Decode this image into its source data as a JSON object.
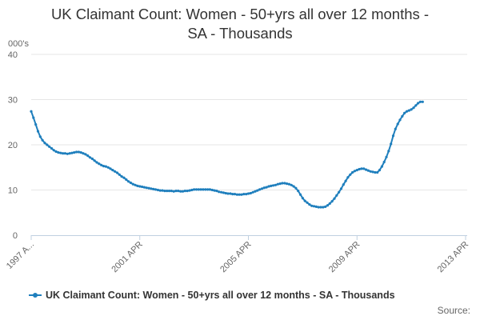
{
  "title_lines": [
    "UK Claimant Count: Women - 50+yrs all over 12 months -",
    "SA - Thousands"
  ],
  "source_label": "Source:",
  "colors": {
    "series": "#1f7fbd",
    "grid": "#e6e6e6",
    "axis": "#c0d0e0",
    "text": "#666666"
  },
  "chart_data": {
    "type": "line",
    "title": "UK Claimant Count: Women - 50+yrs all over 12 months - SA - Thousands",
    "ylabel": "000's",
    "ylim": [
      0,
      40
    ],
    "yticks": [
      0,
      10,
      20,
      30,
      40
    ],
    "grid": true,
    "legend_position": "bottom",
    "x_start": "1997 APR",
    "x_end": "2013 APR",
    "xtick_labels": [
      "1997 A...",
      "2001 APR",
      "2005 APR",
      "2009 APR",
      "2013 APR"
    ],
    "series": [
      {
        "name": "UK Claimant Count: Women - 50+yrs all over 12 months - SA - Thousands",
        "points": [
          [
            "1997 APR",
            27.4
          ],
          [
            "1997 MAY",
            26.0
          ],
          [
            "1997 JUN",
            24.5
          ],
          [
            "1997 JUL",
            23.0
          ],
          [
            "1997 AUG",
            21.8
          ],
          [
            "1997 SEP",
            21.0
          ],
          [
            "1997 OCT",
            20.4
          ],
          [
            "1997 NOV",
            20.0
          ],
          [
            "1997 DEC",
            19.6
          ],
          [
            "1998 JAN",
            19.2
          ],
          [
            "1998 FEB",
            18.8
          ],
          [
            "1998 MAR",
            18.5
          ],
          [
            "1998 APR",
            18.3
          ],
          [
            "1998 MAY",
            18.2
          ],
          [
            "1998 JUN",
            18.1
          ],
          [
            "1998 JUL",
            18.1
          ],
          [
            "1998 AUG",
            18.0
          ],
          [
            "1998 SEP",
            18.1
          ],
          [
            "1998 OCT",
            18.2
          ],
          [
            "1998 NOV",
            18.3
          ],
          [
            "1998 DEC",
            18.4
          ],
          [
            "1999 JAN",
            18.4
          ],
          [
            "1999 FEB",
            18.3
          ],
          [
            "1999 MAR",
            18.1
          ],
          [
            "1999 APR",
            17.9
          ],
          [
            "1999 MAY",
            17.6
          ],
          [
            "1999 JUN",
            17.2
          ],
          [
            "1999 JUL",
            16.9
          ],
          [
            "1999 AUG",
            16.5
          ],
          [
            "1999 SEP",
            16.1
          ],
          [
            "1999 OCT",
            15.8
          ],
          [
            "1999 NOV",
            15.5
          ],
          [
            "1999 DEC",
            15.3
          ],
          [
            "2000 JAN",
            15.2
          ],
          [
            "2000 FEB",
            15.0
          ],
          [
            "2000 MAR",
            14.7
          ],
          [
            "2000 APR",
            14.4
          ],
          [
            "2000 MAY",
            14.1
          ],
          [
            "2000 JUN",
            13.8
          ],
          [
            "2000 JUL",
            13.4
          ],
          [
            "2000 AUG",
            13.0
          ],
          [
            "2000 SEP",
            12.7
          ],
          [
            "2000 OCT",
            12.3
          ],
          [
            "2000 NOV",
            11.9
          ],
          [
            "2000 DEC",
            11.6
          ],
          [
            "2001 JAN",
            11.3
          ],
          [
            "2001 FEB",
            11.1
          ],
          [
            "2001 MAR",
            10.9
          ],
          [
            "2001 APR",
            10.8
          ],
          [
            "2001 MAY",
            10.7
          ],
          [
            "2001 JUN",
            10.6
          ],
          [
            "2001 JUL",
            10.5
          ],
          [
            "2001 AUG",
            10.4
          ],
          [
            "2001 SEP",
            10.3
          ],
          [
            "2001 OCT",
            10.2
          ],
          [
            "2001 NOV",
            10.1
          ],
          [
            "2001 DEC",
            10.0
          ],
          [
            "2002 JAN",
            9.9
          ],
          [
            "2002 FEB",
            9.9
          ],
          [
            "2002 MAR",
            9.8
          ],
          [
            "2002 APR",
            9.8
          ],
          [
            "2002 MAY",
            9.8
          ],
          [
            "2002 JUN",
            9.8
          ],
          [
            "2002 JUL",
            9.7
          ],
          [
            "2002 AUG",
            9.8
          ],
          [
            "2002 SEP",
            9.8
          ],
          [
            "2002 OCT",
            9.7
          ],
          [
            "2002 NOV",
            9.7
          ],
          [
            "2002 DEC",
            9.8
          ],
          [
            "2003 JAN",
            9.8
          ],
          [
            "2003 FEB",
            9.9
          ],
          [
            "2003 MAR",
            10.0
          ],
          [
            "2003 APR",
            10.1
          ],
          [
            "2003 MAY",
            10.1
          ],
          [
            "2003 JUN",
            10.1
          ],
          [
            "2003 JUL",
            10.1
          ],
          [
            "2003 AUG",
            10.1
          ],
          [
            "2003 SEP",
            10.1
          ],
          [
            "2003 OCT",
            10.1
          ],
          [
            "2003 NOV",
            10.1
          ],
          [
            "2003 DEC",
            10.0
          ],
          [
            "2004 JAN",
            9.9
          ],
          [
            "2004 FEB",
            9.8
          ],
          [
            "2004 MAR",
            9.6
          ],
          [
            "2004 APR",
            9.5
          ],
          [
            "2004 MAY",
            9.4
          ],
          [
            "2004 JUN",
            9.3
          ],
          [
            "2004 JUL",
            9.2
          ],
          [
            "2004 AUG",
            9.2
          ],
          [
            "2004 SEP",
            9.1
          ],
          [
            "2004 OCT",
            9.1
          ],
          [
            "2004 NOV",
            9.0
          ],
          [
            "2004 DEC",
            9.0
          ],
          [
            "2005 JAN",
            9.0
          ],
          [
            "2005 FEB",
            9.1
          ],
          [
            "2005 MAR",
            9.1
          ],
          [
            "2005 APR",
            9.2
          ],
          [
            "2005 MAY",
            9.3
          ],
          [
            "2005 JUN",
            9.5
          ],
          [
            "2005 JUL",
            9.7
          ],
          [
            "2005 AUG",
            9.9
          ],
          [
            "2005 SEP",
            10.1
          ],
          [
            "2005 OCT",
            10.3
          ],
          [
            "2005 NOV",
            10.5
          ],
          [
            "2005 DEC",
            10.6
          ],
          [
            "2006 JAN",
            10.8
          ],
          [
            "2006 FEB",
            10.9
          ],
          [
            "2006 MAR",
            11.0
          ],
          [
            "2006 APR",
            11.1
          ],
          [
            "2006 MAY",
            11.3
          ],
          [
            "2006 JUN",
            11.4
          ],
          [
            "2006 JUL",
            11.5
          ],
          [
            "2006 AUG",
            11.5
          ],
          [
            "2006 SEP",
            11.4
          ],
          [
            "2006 OCT",
            11.3
          ],
          [
            "2006 NOV",
            11.1
          ],
          [
            "2006 DEC",
            10.8
          ],
          [
            "2007 JAN",
            10.4
          ],
          [
            "2007 FEB",
            9.8
          ],
          [
            "2007 MAR",
            9.0
          ],
          [
            "2007 APR",
            8.2
          ],
          [
            "2007 MAY",
            7.6
          ],
          [
            "2007 JUN",
            7.2
          ],
          [
            "2007 JUL",
            6.8
          ],
          [
            "2007 AUG",
            6.5
          ],
          [
            "2007 SEP",
            6.4
          ],
          [
            "2007 OCT",
            6.3
          ],
          [
            "2007 NOV",
            6.2
          ],
          [
            "2007 DEC",
            6.2
          ],
          [
            "2008 JAN",
            6.2
          ],
          [
            "2008 FEB",
            6.3
          ],
          [
            "2008 MAR",
            6.6
          ],
          [
            "2008 APR",
            7.0
          ],
          [
            "2008 MAY",
            7.5
          ],
          [
            "2008 JUN",
            8.1
          ],
          [
            "2008 JUL",
            8.8
          ],
          [
            "2008 AUG",
            9.5
          ],
          [
            "2008 SEP",
            10.3
          ],
          [
            "2008 OCT",
            11.2
          ],
          [
            "2008 NOV",
            12.0
          ],
          [
            "2008 DEC",
            12.8
          ],
          [
            "2009 JAN",
            13.4
          ],
          [
            "2009 FEB",
            13.9
          ],
          [
            "2009 MAR",
            14.2
          ],
          [
            "2009 APR",
            14.4
          ],
          [
            "2009 MAY",
            14.6
          ],
          [
            "2009 JUN",
            14.7
          ],
          [
            "2009 JUL",
            14.7
          ],
          [
            "2009 AUG",
            14.5
          ],
          [
            "2009 SEP",
            14.3
          ],
          [
            "2009 OCT",
            14.1
          ],
          [
            "2009 NOV",
            14.0
          ],
          [
            "2009 DEC",
            13.9
          ],
          [
            "2010 JAN",
            13.9
          ],
          [
            "2010 FEB",
            14.4
          ],
          [
            "2010 MAR",
            15.2
          ],
          [
            "2010 APR",
            16.2
          ],
          [
            "2010 MAY",
            17.3
          ],
          [
            "2010 JUN",
            18.6
          ],
          [
            "2010 JUL",
            20.2
          ],
          [
            "2010 AUG",
            22.0
          ],
          [
            "2010 SEP",
            23.5
          ],
          [
            "2010 OCT",
            24.6
          ],
          [
            "2010 NOV",
            25.5
          ],
          [
            "2010 DEC",
            26.3
          ],
          [
            "2011 JAN",
            27.0
          ],
          [
            "2011 FEB",
            27.4
          ],
          [
            "2011 MAR",
            27.6
          ],
          [
            "2011 APR",
            27.8
          ],
          [
            "2011 MAY",
            28.2
          ],
          [
            "2011 JUN",
            28.7
          ],
          [
            "2011 JUL",
            29.2
          ],
          [
            "2011 AUG",
            29.5
          ],
          [
            "2011 SEP",
            29.5
          ]
        ]
      }
    ]
  }
}
